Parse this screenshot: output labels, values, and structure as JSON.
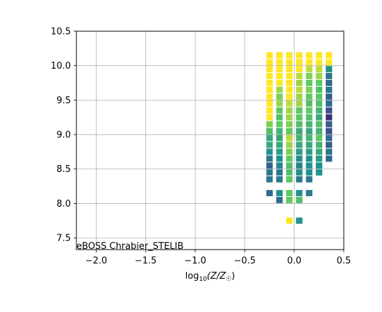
{
  "chart_data": {
    "type": "heatmap",
    "xlabel_prefix": "log",
    "xlabel_sub": "10",
    "xlabel_body": "(Z/Z",
    "xlabel_sub2": "☉",
    "xlabel_suffix": ")",
    "ylabel": "",
    "annotation": "eBOSS Chrabier_STELIB",
    "xlim": [
      -2.2,
      0.5
    ],
    "ylim": [
      7.33,
      10.5
    ],
    "grid": true,
    "xticks": [
      -2.0,
      -1.5,
      -1.0,
      -0.5,
      0.0,
      0.5
    ],
    "xtick_labels": [
      "−2.0",
      "−1.5",
      "−1.0",
      "−0.5",
      "0.0",
      "0.5"
    ],
    "yticks": [
      7.5,
      8.0,
      8.5,
      9.0,
      9.5,
      10.0,
      10.5
    ],
    "ytick_labels": [
      "7.5",
      "8.0",
      "8.5",
      "9.0",
      "9.5",
      "10.0",
      "10.5"
    ],
    "cell_width": 0.065,
    "cell_height": 0.09,
    "colormap": [
      "#440154",
      "#3b528b",
      "#21918c",
      "#5ec962",
      "#fde725"
    ],
    "cells": [
      {
        "x": -0.25,
        "ys": [
          10.15,
          10.05,
          9.95,
          9.85,
          9.75,
          9.65,
          9.55,
          9.45,
          9.35,
          9.25,
          9.15,
          9.05,
          8.95,
          8.85,
          8.75,
          8.65,
          8.55,
          8.45,
          8.35,
          8.15
        ],
        "vs": [
          1,
          1,
          1,
          1,
          1,
          1,
          1,
          1,
          1,
          1,
          0.8,
          0.7,
          0.6,
          0.6,
          0.5,
          0.4,
          0.3,
          0.4,
          0.4,
          0.35
        ]
      },
      {
        "x": -0.15,
        "ys": [
          10.15,
          10.05,
          9.95,
          9.85,
          9.75,
          9.65,
          9.55,
          9.45,
          9.35,
          9.25,
          9.15,
          9.05,
          8.95,
          8.85,
          8.75,
          8.65,
          8.55,
          8.45,
          8.35,
          8.15,
          8.05
        ],
        "vs": [
          1,
          1,
          1,
          1,
          1,
          0.85,
          0.8,
          0.85,
          0.75,
          0.7,
          0.75,
          0.65,
          0.6,
          0.6,
          0.55,
          0.5,
          0.45,
          0.4,
          0.4,
          0.5,
          0.35
        ]
      },
      {
        "x": -0.05,
        "ys": [
          10.15,
          10.05,
          9.95,
          9.85,
          9.75,
          9.65,
          9.55,
          9.45,
          9.35,
          9.25,
          9.15,
          9.05,
          8.95,
          8.85,
          8.75,
          8.65,
          8.55,
          8.45,
          8.35,
          8.15,
          8.05,
          7.75
        ],
        "vs": [
          1,
          1,
          1,
          1,
          1,
          1,
          1,
          0.9,
          0.85,
          0.85,
          0.8,
          0.75,
          0.9,
          0.85,
          0.8,
          0.75,
          0.7,
          0.7,
          0.75,
          0.75,
          0.75,
          1
        ]
      },
      {
        "x": 0.05,
        "ys": [
          10.15,
          10.05,
          9.95,
          9.85,
          9.75,
          9.65,
          9.55,
          9.45,
          9.35,
          9.25,
          9.15,
          9.05,
          8.95,
          8.85,
          8.75,
          8.65,
          8.55,
          8.45,
          8.35,
          8.15,
          8.05,
          7.75
        ],
        "vs": [
          1,
          1,
          1,
          0.9,
          0.85,
          0.9,
          0.85,
          0.85,
          0.75,
          0.75,
          0.7,
          0.6,
          0.65,
          0.6,
          0.55,
          0.5,
          0.45,
          0.5,
          0.4,
          0.5,
          0.7,
          0.5
        ]
      },
      {
        "x": 0.15,
        "ys": [
          10.15,
          10.05,
          9.95,
          9.85,
          9.75,
          9.65,
          9.55,
          9.45,
          9.35,
          9.25,
          9.15,
          9.05,
          8.95,
          8.85,
          8.75,
          8.65,
          8.55,
          8.45,
          8.35,
          8.15
        ],
        "vs": [
          1,
          1,
          0.9,
          0.8,
          0.75,
          0.8,
          0.75,
          0.7,
          0.75,
          0.7,
          0.65,
          0.6,
          0.65,
          0.6,
          0.55,
          0.5,
          0.5,
          0.5,
          0.4,
          0.4
        ]
      },
      {
        "x": 0.25,
        "ys": [
          10.15,
          10.05,
          9.95,
          9.85,
          9.75,
          9.65,
          9.55,
          9.45,
          9.35,
          9.25,
          9.15,
          9.05,
          8.95,
          8.85,
          8.75,
          8.65,
          8.55,
          8.45
        ],
        "vs": [
          1,
          1,
          0.9,
          0.85,
          0.75,
          0.7,
          0.75,
          0.7,
          0.65,
          0.6,
          0.7,
          0.65,
          0.75,
          0.65,
          0.6,
          0.55,
          0.5,
          0.5
        ]
      },
      {
        "x": 0.35,
        "ys": [
          10.15,
          10.05,
          9.95,
          9.85,
          9.75,
          9.65,
          9.55,
          9.45,
          9.35,
          9.25,
          9.15,
          9.05,
          8.95,
          8.85,
          8.75,
          8.65
        ],
        "vs": [
          1,
          1,
          0.5,
          0.4,
          0.35,
          0.4,
          0.3,
          0.35,
          0.25,
          0.15,
          0.3,
          0.25,
          0.35,
          0.3,
          0.4,
          0.35
        ]
      }
    ]
  }
}
